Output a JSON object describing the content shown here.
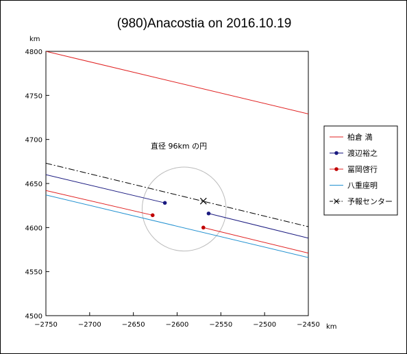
{
  "chart_data": {
    "type": "line",
    "title": "(980)Anacostia on 2016.10.19",
    "x_unit": "km",
    "y_unit": "km",
    "xlim": [
      -2750,
      -2450
    ],
    "ylim": [
      4500,
      4800
    ],
    "x_ticks": [
      -2750,
      -2700,
      -2650,
      -2600,
      -2550,
      -2500,
      -2450
    ],
    "y_ticks": [
      4500,
      4550,
      4600,
      4650,
      4700,
      4750,
      4800
    ],
    "annotation": "直径 96km の円",
    "circle": {
      "center": [
        -2592,
        4621
      ],
      "diameter_km": 96,
      "color": "#bbbbbb"
    },
    "series": [
      {
        "name": "柏倉 満",
        "color": "#e02020",
        "marker": "none",
        "dash": "solid",
        "points": [
          [
            -2750,
            4800
          ],
          [
            -2450,
            4729
          ]
        ]
      },
      {
        "name": "渡辺裕之",
        "color": "#1a1a80",
        "marker": "dot",
        "dash": "solid",
        "segments": [
          {
            "points": [
              [
                -2750,
                4660
              ],
              [
                -2614,
                4628
              ]
            ],
            "end_marker": [
              -2614,
              4628
            ]
          },
          {
            "points": [
              [
                -2564,
                4616
              ],
              [
                -2450,
                4588
              ]
            ],
            "start_marker": [
              -2564,
              4616
            ]
          }
        ]
      },
      {
        "name": "冨岡啓行",
        "color": "#e02020",
        "marker": "dot",
        "dash": "solid",
        "marker_color": "#c00000",
        "segments": [
          {
            "points": [
              [
                -2750,
                4642
              ],
              [
                -2628,
                4614
              ]
            ],
            "end_marker": [
              -2628,
              4614
            ]
          },
          {
            "points": [
              [
                -2570,
                4600
              ],
              [
                -2450,
                4571
              ]
            ],
            "start_marker": [
              -2570,
              4600
            ]
          }
        ]
      },
      {
        "name": "八重座明",
        "color": "#2090d0",
        "marker": "none",
        "dash": "solid",
        "points": [
          [
            -2750,
            4637
          ],
          [
            -2450,
            4566
          ]
        ]
      },
      {
        "name": "予報センター",
        "color": "#000000",
        "marker": "x",
        "dash": "dashdot",
        "points": [
          [
            -2750,
            4673
          ],
          [
            -2450,
            4601
          ]
        ],
        "x_marker": [
          -2570,
          4630
        ]
      }
    ]
  }
}
